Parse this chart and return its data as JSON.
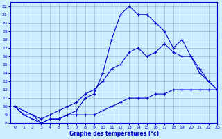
{
  "xlabel": "Graphe des températures (°c)",
  "bg_color": "#cceeff",
  "line_color": "#0000cc",
  "grid_color": "#88aacc",
  "xlim": [
    -0.5,
    23
  ],
  "ylim": [
    8,
    22.5
  ],
  "xticks": [
    0,
    1,
    2,
    3,
    4,
    5,
    6,
    7,
    8,
    9,
    10,
    11,
    12,
    13,
    14,
    15,
    16,
    17,
    18,
    19,
    20,
    21,
    22,
    23
  ],
  "yticks": [
    8,
    9,
    10,
    11,
    12,
    13,
    14,
    15,
    16,
    17,
    18,
    19,
    20,
    21,
    22
  ],
  "line_min_x": [
    0,
    1,
    2,
    3,
    4,
    5,
    6,
    7,
    8,
    9,
    10,
    11,
    12,
    13,
    14,
    15,
    16,
    17,
    18,
    19,
    20,
    21,
    22,
    23
  ],
  "line_min_y": [
    10,
    9,
    8.5,
    8,
    8.5,
    8.5,
    9,
    9,
    9,
    9,
    9.5,
    10,
    10.5,
    11,
    11,
    11,
    11.5,
    11.5,
    12,
    12,
    12,
    12,
    12,
    12
  ],
  "line_max_x": [
    0,
    1,
    2,
    3,
    4,
    5,
    6,
    7,
    8,
    9,
    10,
    11,
    12,
    13,
    14,
    15,
    16,
    17,
    18,
    19,
    20,
    21,
    22,
    23
  ],
  "line_max_y": [
    10,
    9,
    9,
    8,
    8.5,
    8.5,
    9,
    9.5,
    11,
    11.5,
    14,
    18,
    21,
    22,
    21,
    21,
    20,
    19,
    17,
    18,
    16,
    14,
    13,
    12
  ],
  "line_mid_x": [
    0,
    1,
    2,
    3,
    4,
    5,
    6,
    7,
    8,
    9,
    10,
    11,
    12,
    13,
    14,
    15,
    16,
    17,
    18,
    19,
    20,
    21,
    22,
    23
  ],
  "line_mid_y": [
    10,
    9.5,
    9,
    8.5,
    9,
    9.5,
    10,
    10.5,
    11.5,
    12,
    13,
    14.5,
    15,
    16.5,
    17,
    16,
    16.5,
    17.5,
    16.5,
    16,
    16,
    14.5,
    13,
    12
  ]
}
